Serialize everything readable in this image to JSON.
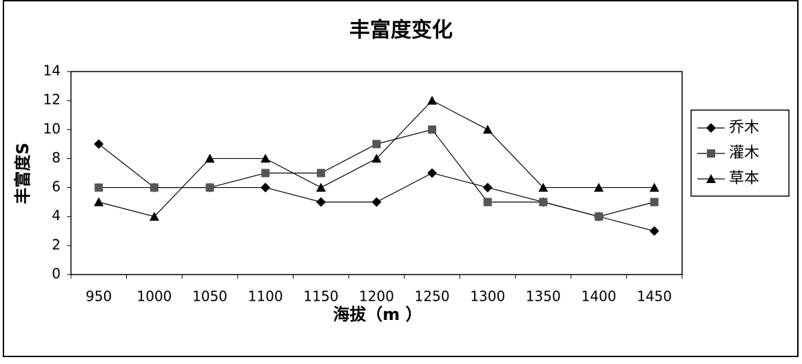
{
  "chart_data": {
    "type": "line",
    "title": "丰富度变化",
    "x_label": "海拔（m ）",
    "y_label": "丰富度S",
    "categories": [
      "950",
      "1000",
      "1050",
      "1100",
      "1150",
      "1200",
      "1250",
      "1300",
      "1350",
      "1400",
      "1450"
    ],
    "series": [
      {
        "name": "乔木",
        "color": "#000000",
        "marker": "diamond",
        "values": [
          9,
          6,
          6,
          6,
          5,
          5,
          7,
          6,
          5,
          4,
          3
        ]
      },
      {
        "name": "灌木",
        "color": "#555555",
        "marker": "square",
        "values": [
          6,
          6,
          6,
          7,
          7,
          9,
          10,
          5,
          5,
          4,
          5
        ]
      },
      {
        "name": "草本",
        "color": "#000000",
        "marker": "triangle",
        "values": [
          5,
          4,
          8,
          8,
          6,
          8,
          12,
          10,
          6,
          6,
          6
        ]
      }
    ],
    "ylim": [
      0,
      14
    ],
    "yticks": [
      0,
      2,
      4,
      6,
      8,
      10,
      12,
      14
    ],
    "grid": false,
    "legend": "right"
  }
}
